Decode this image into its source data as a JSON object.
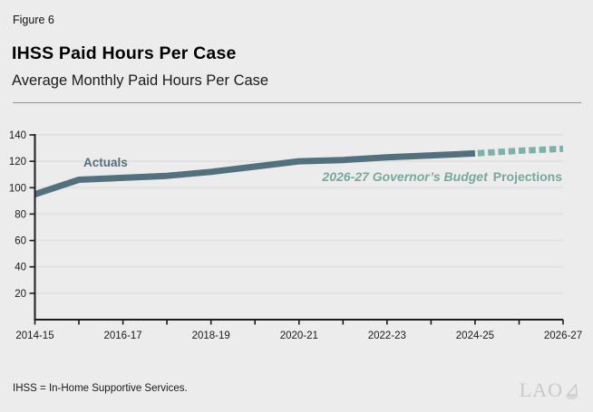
{
  "page": {
    "figure_label": "Figure 6",
    "footnote": "IHSS = In-Home Supportive Services.",
    "logo_text": "LAO"
  },
  "annotations": {
    "actuals_label": "Actuals",
    "projection_label_italic": "2026-27 Governor’s Budget",
    "projection_label_regular": "Projections"
  },
  "colors": {
    "background": "#ebeceb",
    "axis": "#1c1c1c",
    "gridline": "#e1e2e1",
    "tick_label": "#1a1a1a",
    "actuals_line": "#53707f",
    "projection_line": "#7fb2a6",
    "projection_text": "#76a89c",
    "logo": "#c6cacc"
  },
  "chart_data": {
    "type": "line",
    "title": "IHSS Paid Hours Per Case",
    "subtitle": "Average Monthly Paid Hours Per Case",
    "xlabel": "",
    "ylabel": "",
    "ylim": [
      0,
      140
    ],
    "y_ticks": [
      20,
      40,
      60,
      80,
      100,
      120,
      140
    ],
    "grid": true,
    "legend_position": "inline-annotations",
    "x": [
      "2014-15",
      "2015-16",
      "2016-17",
      "2017-18",
      "2018-19",
      "2019-20",
      "2020-21",
      "2021-22",
      "2022-23",
      "2023-24",
      "2024-25",
      "2025-26",
      "2026-27"
    ],
    "x_axis_tick_labels": [
      "2014-15",
      "2016-17",
      "2018-19",
      "2020-21",
      "2022-23",
      "2024-25",
      "2026-27"
    ],
    "series": [
      {
        "name": "Actuals",
        "style": "solid",
        "color": "#53707f",
        "x": [
          "2014-15",
          "2015-16",
          "2016-17",
          "2017-18",
          "2018-19",
          "2019-20",
          "2020-21",
          "2021-22",
          "2022-23",
          "2023-24",
          "2024-25"
        ],
        "values": [
          95,
          106,
          107.5,
          109,
          112,
          116,
          120,
          121,
          123,
          124.5,
          126
        ]
      },
      {
        "name": "2026-27 Governor’s Budget Projections",
        "style": "dashed",
        "color": "#7fb2a6",
        "x": [
          "2024-25",
          "2025-26",
          "2026-27"
        ],
        "values": [
          126,
          128,
          129.5
        ]
      }
    ]
  }
}
